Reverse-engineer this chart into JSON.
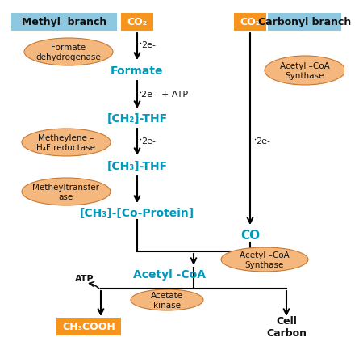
{
  "bg_color": "#ffffff",
  "orange_box_color": "#f7941d",
  "blue_header_color": "#8ec8e0",
  "ellipse_color": "#f4b77e",
  "ellipse_edge_color": "#c87830",
  "cyan_text_color": "#0099bb",
  "black_text_color": "#111111",
  "methyl_header": "Methyl  branch",
  "carbonyl_header": "Carbonyl branch",
  "co2_left": "CO₂",
  "co2_right": "CO₂",
  "formate_dehydrogenase": "Formate\ndehydrogenase",
  "formate": "Formate",
  "ch2_thf": "[CH₂]-THF",
  "metheylene": "Metheylene –\nH₄F reductase",
  "ch3_thf": "[CH₃]-THF",
  "metheyltransferase": "Metheyltransfer\nase",
  "ch3_co_protein": "[CH₃]-[Co-Protein]",
  "acetyl_coa_synthase_top": "Acetyl –CoA\nSynthase",
  "co_label": "CO",
  "acetyl_coa_synthase_mid": "Acetyl –CoA\nSynthase",
  "acetyl_coa": "Acetyl -CoA",
  "atp_label": "ATP",
  "acetate_kinase": "Acetate\nkinase",
  "ch3cooh": "CH₃COOH",
  "cell_carbon": "Cell\nCarbon",
  "label_2e_1": "2e-",
  "label_2e_atp": "2e-  + ATP",
  "label_2e_3": "2e-",
  "label_2e_4": "2e-"
}
